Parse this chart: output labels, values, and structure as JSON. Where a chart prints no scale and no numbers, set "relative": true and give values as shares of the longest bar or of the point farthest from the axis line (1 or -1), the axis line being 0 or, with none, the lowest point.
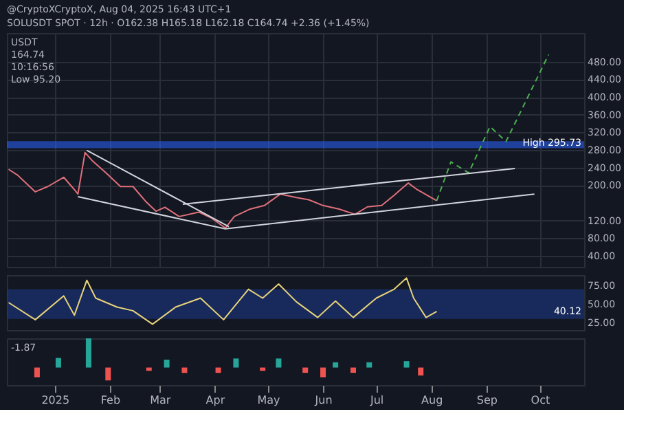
{
  "chart_data": [
    {
      "type": "line",
      "title": "@CryptoXCryptoX, Aug 04, 2025 16:43 UTC+1",
      "subtitle": "SOLUSDT SPOT · 12h · O162.38 H165.18 L162.18 C164.74 +2.36 (+1.45%)",
      "xlim": [
        "2024-12-05",
        "2025-10-26"
      ],
      "ylim": [
        15,
        545
      ],
      "xticks": [
        {
          "value": "2025-01-01",
          "label": null
        },
        {
          "value": "2025-02-01",
          "label": null
        },
        {
          "value": "2025-03-01",
          "label": null
        },
        {
          "value": "2025-04-01",
          "label": null
        },
        {
          "value": "2025-05-01",
          "label": null
        },
        {
          "value": "2025-06-01",
          "label": null
        },
        {
          "value": "2025-07-01",
          "label": null
        },
        {
          "value": "2025-08-01",
          "label": null
        },
        {
          "value": "2025-09-01",
          "label": null
        },
        {
          "value": "2025-10-01",
          "label": null
        }
      ],
      "yticks": [
        {
          "value": 40,
          "label": "40.00"
        },
        {
          "value": 80,
          "label": "80.00"
        },
        {
          "value": 120,
          "label": "120.00"
        },
        {
          "value": 200,
          "label": "200.00"
        },
        {
          "value": 240,
          "label": "240.00"
        },
        {
          "value": 280,
          "label": "280.00"
        },
        {
          "value": 320,
          "label": "320.00"
        },
        {
          "value": 360,
          "label": "360.00"
        },
        {
          "value": 400,
          "label": "400.00"
        },
        {
          "value": 440,
          "label": "440.00"
        },
        {
          "value": 480,
          "label": "480.00"
        }
      ],
      "tick_labels": "y",
      "grid": true,
      "marker": "none",
      "series": [
        {
          "color": "#e0707a",
          "line_style": "solid",
          "x": [
            "2024-12-06",
            "2024-12-11",
            "2024-12-21",
            "2024-12-28",
            "2025-01-06",
            "2025-01-12",
            "2025-01-14",
            "2025-01-18",
            "2025-01-22",
            "2025-01-29",
            "2025-02-07",
            "2025-02-14",
            "2025-02-21",
            "2025-02-27",
            "2025-03-04",
            "2025-03-12",
            "2025-03-23",
            "2025-03-30",
            "2025-04-07",
            "2025-04-12",
            "2025-04-21",
            "2025-04-29",
            "2025-05-08",
            "2025-05-17",
            "2025-05-24",
            "2025-06-01",
            "2025-06-10",
            "2025-06-19",
            "2025-06-26",
            "2025-07-04",
            "2025-07-11",
            "2025-07-19",
            "2025-07-24",
            "2025-08-04"
          ],
          "values": [
            236,
            223,
            185,
            197,
            218,
            190,
            180,
            274,
            256,
            231,
            197,
            197,
            164,
            141,
            150,
            129,
            139,
            126,
            103,
            129,
            146,
            154,
            180,
            172,
            167,
            154,
            146,
            134,
            151,
            154,
            177,
            205,
            190,
            165
          ]
        },
        {
          "color": "#4caf50",
          "line_style": "dashed",
          "x": [
            "2025-08-04",
            "2025-08-12",
            "2025-08-22",
            "2025-09-03",
            "2025-09-12",
            "2025-10-06"
          ],
          "values": [
            165,
            253,
            228,
            333,
            299,
            496
          ]
        },
        {
          "color": "#d1d4dc",
          "line_style": "solid",
          "x": [
            "2025-01-19",
            "2025-04-09"
          ],
          "values": [
            279,
            106
          ]
        },
        {
          "color": "#d1d4dc",
          "line_style": "solid",
          "x": [
            "2025-01-14",
            "2025-04-07",
            "2025-09-28"
          ],
          "values": [
            174,
            101,
            180
          ]
        },
        {
          "color": "#d1d4dc",
          "line_style": "solid",
          "x": [
            "2025-03-14",
            "2025-09-17"
          ],
          "values": [
            157,
            238
          ]
        }
      ],
      "bands": [
        {
          "axis": "y",
          "from": 284,
          "to": 300,
          "color": "#2962ff"
        }
      ],
      "annotations": [
        "USDT",
        "164.74",
        "10:16:56",
        "Low 95.20",
        {
          "text": "High 295.73",
          "y": 295.73
        }
      ]
    },
    {
      "type": "line",
      "xlim": [
        "2024-12-05",
        "2025-10-26"
      ],
      "ylim": [
        15,
        89
      ],
      "yticks": [
        {
          "value": 25,
          "label": "25.00"
        },
        {
          "value": 50,
          "label": "50.00"
        },
        {
          "value": 75,
          "label": "75.00"
        }
      ],
      "tick_labels": "y",
      "grid": false,
      "marker": "none",
      "series": [
        {
          "color": "#e8d37a",
          "line_style": "solid",
          "x": [
            "2024-12-06",
            "2024-12-21",
            "2025-01-06",
            "2025-01-12",
            "2025-01-19",
            "2025-01-24",
            "2025-02-05",
            "2025-02-14",
            "2025-02-25",
            "2025-03-10",
            "2025-03-24",
            "2025-04-06",
            "2025-04-20",
            "2025-04-28",
            "2025-05-07",
            "2025-05-17",
            "2025-05-29",
            "2025-06-08",
            "2025-06-18",
            "2025-07-01",
            "2025-07-11",
            "2025-07-18",
            "2025-07-22",
            "2025-07-29",
            "2025-08-04"
          ],
          "values": [
            52,
            29,
            61,
            35,
            82,
            58,
            46,
            41,
            23,
            46,
            58,
            29,
            70,
            58,
            77,
            53,
            32,
            54,
            32,
            58,
            70,
            85,
            58,
            32,
            40
          ]
        }
      ],
      "bands": [
        {
          "axis": "y",
          "from": 30,
          "to": 70,
          "color": "#1e3a8a"
        }
      ],
      "annotations": [
        {
          "text": "40.12",
          "y": 40.12
        }
      ]
    },
    {
      "type": "bar",
      "relative": true,
      "xlim": [
        "2024-12-05",
        "2025-10-26"
      ],
      "xticks": [
        {
          "value": "2025-01-01",
          "label": "2025"
        },
        {
          "value": "2025-02-01",
          "label": "Feb"
        },
        {
          "value": "2025-03-01",
          "label": "Mar"
        },
        {
          "value": "2025-04-01",
          "label": "Apr"
        },
        {
          "value": "2025-05-01",
          "label": "May"
        },
        {
          "value": "2025-06-01",
          "label": "Jun"
        },
        {
          "value": "2025-07-01",
          "label": "Jul"
        },
        {
          "value": "2025-08-01",
          "label": "Aug"
        },
        {
          "value": "2025-09-01",
          "label": "Sep"
        },
        {
          "value": "2025-10-01",
          "label": "Oct"
        }
      ],
      "tick_labels": "x",
      "grid": false,
      "x": [
        "2024-12-22",
        "2025-01-03",
        "2025-01-20",
        "2025-01-31",
        "2025-02-23",
        "2025-03-05",
        "2025-03-15",
        "2025-04-03",
        "2025-04-13",
        "2025-04-28",
        "2025-05-07",
        "2025-05-22",
        "2025-06-01",
        "2025-06-08",
        "2025-06-18",
        "2025-06-27",
        "2025-07-18",
        "2025-07-26"
      ],
      "values": [
        -0.33,
        0.33,
        1,
        -0.44,
        -0.11,
        0.27,
        -0.18,
        -0.18,
        0.31,
        -0.11,
        0.31,
        -0.18,
        -0.33,
        0.18,
        -0.18,
        0.18,
        0.22,
        -0.27
      ],
      "colors": [
        "#ef5350",
        "#26a69a",
        "#26a69a",
        "#ef5350",
        "#ef5350",
        "#26a69a",
        "#ef5350",
        "#ef5350",
        "#26a69a",
        "#ef5350",
        "#26a69a",
        "#ef5350",
        "#ef5350",
        "#26a69a",
        "#ef5350",
        "#26a69a",
        "#26a69a",
        "#ef5350"
      ],
      "annotations": [
        "-1.87"
      ]
    }
  ]
}
